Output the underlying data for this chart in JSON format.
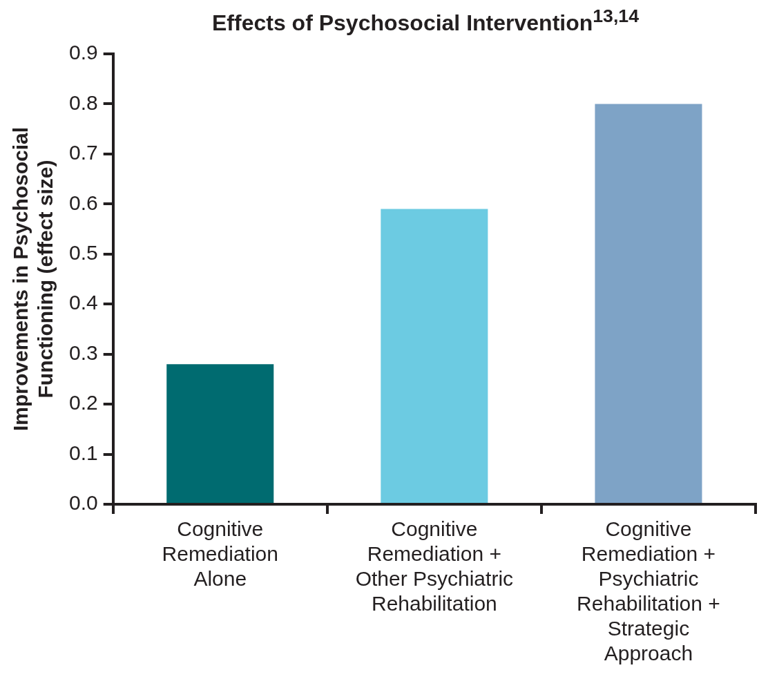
{
  "chart_data": {
    "type": "bar",
    "title": "Effects of Psychosocial Intervention$^{13,14}$",
    "ylabel": "Improvements in Psychosocial Functioning (effect size)",
    "categories": [
      "Cognitive Remediation Alone",
      "Cognitive Remediation + Other Psychiatric Rehabilitation",
      "Cognitive Remediation + Psychiatric Rehabilitation + Strategic Approach"
    ],
    "values": [
      0.28,
      0.59,
      0.8
    ],
    "colors": [
      "#006b70",
      "#6ccbe2",
      "#7ea3c6"
    ],
    "ylim": [
      0,
      0.9
    ],
    "yticks": [
      {
        "value": 0,
        "label": "0.0"
      },
      0.1,
      0.2,
      0.3,
      0.4,
      0.5,
      0.6,
      0.7,
      0.8,
      0.9
    ],
    "grid": false,
    "legend": false
  }
}
